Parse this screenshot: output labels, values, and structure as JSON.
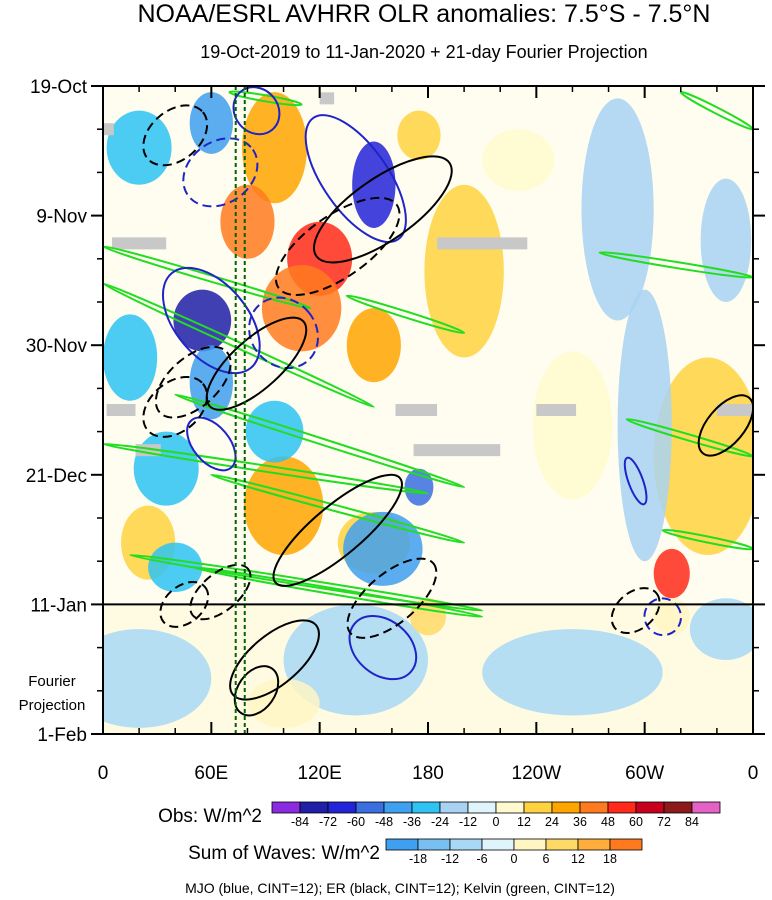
{
  "chart_data": {
    "type": "heatmap",
    "title": "NOAA/ESRL AVHRR OLR anomalies: 7.5°S - 7.5°N",
    "subtitle": "19-Oct-2019 to 11-Jan-2020 + 21-day Fourier Projection",
    "xlabel": "",
    "ylabel": "",
    "x_ticks": [
      "0",
      "60E",
      "120E",
      "180",
      "120W",
      "60W",
      "0"
    ],
    "x_tick_longitudes": [
      0,
      60,
      120,
      180,
      240,
      300,
      360
    ],
    "x_range": [
      0,
      360
    ],
    "y_ticks": [
      "19-Oct",
      "9-Nov",
      "30-Nov",
      "21-Dec",
      "11-Jan",
      "1-Feb"
    ],
    "y_tick_days": [
      0,
      21,
      42,
      63,
      84,
      105
    ],
    "y_range_days": [
      0,
      105
    ],
    "observation_end_day": 84,
    "projection_label_line1": "Fourier",
    "projection_label_line2": "Projection",
    "reference_lines_longitude": [
      73.5,
      78.5
    ],
    "obs_colorbar": {
      "label": "Obs: W/m^2",
      "levels": [
        -84,
        -72,
        -60,
        -48,
        -36,
        -24,
        -12,
        0,
        12,
        24,
        36,
        48,
        60,
        72,
        84
      ],
      "colors": [
        "#8a2be2",
        "#1f1fa8",
        "#2323d8",
        "#3a6fe0",
        "#3f9ff0",
        "#2ec3f3",
        "#a8d2f2",
        "#dff4fb",
        "#fffacd",
        "#ffd23f",
        "#ffa500",
        "#ff7a1e",
        "#ff2a1a",
        "#c8001e",
        "#8c1a1a",
        "#e462c6"
      ]
    },
    "wave_colorbar": {
      "label": "Sum of Waves: W/m^2",
      "levels": [
        -18,
        -12,
        -6,
        0,
        6,
        12,
        18
      ],
      "colors": [
        "#3f9ff0",
        "#78c0f2",
        "#a8d8f6",
        "#dff4fb",
        "#fff6c2",
        "#ffd966",
        "#ffad3b",
        "#ff7a1e"
      ]
    },
    "legend_text": "MJO (blue, CINT=12); ER (black, CINT=12); Kelvin (green, CINT=12)",
    "wave_colors": {
      "mjo": "#1f24c8",
      "er": "#000000",
      "kelvin": "#22dd22"
    },
    "obs_anomaly_regions": [
      {
        "lon": 95,
        "day": 10,
        "rl": 18,
        "rd": 9,
        "value": 36
      },
      {
        "lon": 80,
        "day": 22,
        "rl": 15,
        "rd": 6,
        "value": 48
      },
      {
        "lon": 120,
        "day": 28,
        "rl": 18,
        "rd": 6,
        "value": 60
      },
      {
        "lon": 110,
        "day": 36,
        "rl": 22,
        "rd": 7,
        "value": 48
      },
      {
        "lon": 150,
        "day": 42,
        "rl": 15,
        "rd": 6,
        "value": 36
      },
      {
        "lon": 175,
        "day": 8,
        "rl": 12,
        "rd": 4,
        "value": 24
      },
      {
        "lon": 200,
        "day": 30,
        "rl": 22,
        "rd": 14,
        "value": 24
      },
      {
        "lon": 230,
        "day": 12,
        "rl": 20,
        "rd": 5,
        "value": 12
      },
      {
        "lon": 260,
        "day": 55,
        "rl": 22,
        "rd": 12,
        "value": 12
      },
      {
        "lon": 335,
        "day": 60,
        "rl": 30,
        "rd": 16,
        "value": 24
      },
      {
        "lon": 100,
        "day": 68,
        "rl": 22,
        "rd": 8,
        "value": 36
      },
      {
        "lon": 150,
        "day": 74,
        "rl": 20,
        "rd": 5,
        "value": 24
      },
      {
        "lon": 315,
        "day": 79,
        "rl": 10,
        "rd": 4,
        "value": 60
      },
      {
        "lon": 25,
        "day": 74,
        "rl": 15,
        "rd": 6,
        "value": 24
      },
      {
        "lon": 60,
        "day": 6,
        "rl": 12,
        "rd": 5,
        "value": -36
      },
      {
        "lon": 150,
        "day": 16,
        "rl": 12,
        "rd": 7,
        "value": -60
      },
      {
        "lon": 20,
        "day": 10,
        "rl": 18,
        "rd": 6,
        "value": -24
      },
      {
        "lon": 55,
        "day": 38,
        "rl": 16,
        "rd": 5,
        "value": -72
      },
      {
        "lon": 60,
        "day": 48,
        "rl": 12,
        "rd": 6,
        "value": -36
      },
      {
        "lon": 15,
        "day": 44,
        "rl": 15,
        "rd": 7,
        "value": -24
      },
      {
        "lon": 35,
        "day": 62,
        "rl": 18,
        "rd": 6,
        "value": -24
      },
      {
        "lon": 95,
        "day": 56,
        "rl": 16,
        "rd": 5,
        "value": -24
      },
      {
        "lon": 175,
        "day": 65,
        "rl": 8,
        "rd": 3,
        "value": -48
      },
      {
        "lon": 155,
        "day": 75,
        "rl": 22,
        "rd": 6,
        "value": -36
      },
      {
        "lon": 40,
        "day": 78,
        "rl": 15,
        "rd": 4,
        "value": -24
      },
      {
        "lon": 285,
        "day": 20,
        "rl": 20,
        "rd": 18,
        "value": -12
      },
      {
        "lon": 300,
        "day": 55,
        "rl": 15,
        "rd": 22,
        "value": -12
      },
      {
        "lon": 345,
        "day": 25,
        "rl": 14,
        "rd": 10,
        "value": -12
      }
    ],
    "projection_anomaly_regions": [
      {
        "lon": 20,
        "day": 96,
        "rl": 40,
        "rd": 8,
        "value": -6
      },
      {
        "lon": 140,
        "day": 93,
        "rl": 40,
        "rd": 9,
        "value": -6
      },
      {
        "lon": 180,
        "day": 86,
        "rl": 10,
        "rd": 3,
        "value": 12
      },
      {
        "lon": 260,
        "day": 95,
        "rl": 50,
        "rd": 7,
        "value": -6
      },
      {
        "lon": 345,
        "day": 88,
        "rl": 20,
        "rd": 5,
        "value": -6
      },
      {
        "lon": 315,
        "day": 86,
        "rl": 10,
        "rd": 3,
        "value": 6
      },
      {
        "lon": 100,
        "day": 100,
        "rl": 20,
        "rd": 4,
        "value": 6
      }
    ],
    "missing_data_segments": [
      {
        "lon0": 5,
        "lon1": 35,
        "day": 25.5
      },
      {
        "lon0": 185,
        "lon1": 235,
        "day": 25.5
      },
      {
        "lon0": 2,
        "lon1": 18,
        "day": 52.5
      },
      {
        "lon0": 162,
        "lon1": 185,
        "day": 52.5
      },
      {
        "lon0": 240,
        "lon1": 262,
        "day": 52.5
      },
      {
        "lon0": 340,
        "lon1": 360,
        "day": 52.5
      },
      {
        "lon0": 172,
        "lon1": 220,
        "day": 59
      },
      {
        "lon0": 18,
        "lon1": 32,
        "day": 59
      },
      {
        "lon0": 120,
        "lon1": 128,
        "day": 2
      },
      {
        "lon0": 0,
        "lon1": 6,
        "day": 7
      }
    ],
    "kelvin_bands": [
      {
        "lon0": 0,
        "day0": 26,
        "lon1": 115,
        "day1": 36
      },
      {
        "lon0": 0,
        "day0": 32,
        "lon1": 150,
        "day1": 52
      },
      {
        "lon0": 40,
        "day0": 50,
        "lon1": 200,
        "day1": 65
      },
      {
        "lon0": 0,
        "day0": 58,
        "lon1": 180,
        "day1": 66
      },
      {
        "lon0": 60,
        "day0": 63,
        "lon1": 200,
        "day1": 74
      },
      {
        "lon0": 15,
        "day0": 76,
        "lon1": 210,
        "day1": 85
      },
      {
        "lon0": 50,
        "day0": 78,
        "lon1": 210,
        "day1": 86
      },
      {
        "lon0": 320,
        "day0": 1,
        "lon1": 360,
        "day1": 7
      },
      {
        "lon0": 275,
        "day0": 27,
        "lon1": 360,
        "day1": 31
      },
      {
        "lon0": 290,
        "day0": 54,
        "lon1": 360,
        "day1": 60
      },
      {
        "lon0": 310,
        "day0": 72,
        "lon1": 360,
        "day1": 75
      },
      {
        "lon0": 70,
        "day0": 1,
        "lon1": 110,
        "day1": 3
      },
      {
        "lon0": 135,
        "day0": 34,
        "lon1": 200,
        "day1": 40
      }
    ],
    "mjo_contours": [
      {
        "lon": 60,
        "day": 38,
        "rl": 20,
        "rd": 10,
        "rot": -40,
        "dashed": false
      },
      {
        "lon": 140,
        "day": 15,
        "rl": 18,
        "rd": 12,
        "rot": -35,
        "dashed": false
      },
      {
        "lon": 85,
        "day": 4,
        "rl": 12,
        "rd": 4,
        "rot": -40,
        "dashed": false
      },
      {
        "lon": 65,
        "day": 14,
        "rl": 22,
        "rd": 5,
        "rot": -35,
        "dashed": true
      },
      {
        "lon": 100,
        "day": 40,
        "rl": 18,
        "rd": 6,
        "rot": -40,
        "dashed": true
      },
      {
        "lon": 295,
        "day": 64,
        "rl": 4,
        "rd": 4,
        "rot": -20,
        "dashed": false
      },
      {
        "lon": 155,
        "day": 91,
        "rl": 15,
        "rd": 6,
        "rot": -50,
        "dashed": false
      },
      {
        "lon": 310,
        "day": 86,
        "rl": 10,
        "rd": 3,
        "rot": -40,
        "dashed": true
      },
      {
        "lon": 60,
        "day": 58,
        "rl": 10,
        "rd": 5,
        "rot": -40,
        "dashed": false
      }
    ],
    "er_contours": [
      {
        "lon": 155,
        "day": 20,
        "rl": 45,
        "rd": 5,
        "rot": -35,
        "dashed": false
      },
      {
        "lon": 130,
        "day": 26,
        "rl": 40,
        "rd": 5,
        "rot": -35,
        "dashed": true
      },
      {
        "lon": 85,
        "day": 45,
        "rl": 35,
        "rd": 4,
        "rot": -42,
        "dashed": false
      },
      {
        "lon": 50,
        "day": 48,
        "rl": 25,
        "rd": 4,
        "rot": -42,
        "dashed": true
      },
      {
        "lon": 130,
        "day": 72,
        "rl": 45,
        "rd": 4,
        "rot": -40,
        "dashed": false
      },
      {
        "lon": 160,
        "day": 83,
        "rl": 30,
        "rd": 4,
        "rot": -40,
        "dashed": true
      },
      {
        "lon": 95,
        "day": 93,
        "rl": 30,
        "rd": 4,
        "rot": -40,
        "dashed": false
      },
      {
        "lon": 65,
        "day": 82,
        "rl": 20,
        "rd": 3,
        "rot": -40,
        "dashed": true
      },
      {
        "lon": 85,
        "day": 98,
        "rl": 15,
        "rd": 3,
        "rot": -55,
        "dashed": false
      },
      {
        "lon": 345,
        "day": 55,
        "rl": 20,
        "rd": 3,
        "rot": -50,
        "dashed": false
      },
      {
        "lon": 295,
        "day": 85,
        "rl": 15,
        "rd": 3,
        "rot": -40,
        "dashed": true
      },
      {
        "lon": 40,
        "day": 8,
        "rl": 20,
        "rd": 4,
        "rot": -40,
        "dashed": true
      },
      {
        "lon": 40,
        "day": 52,
        "rl": 20,
        "rd": 4,
        "rot": -40,
        "dashed": true
      },
      {
        "lon": 45,
        "day": 84,
        "rl": 15,
        "rd": 3,
        "rot": -40,
        "dashed": true
      }
    ]
  }
}
